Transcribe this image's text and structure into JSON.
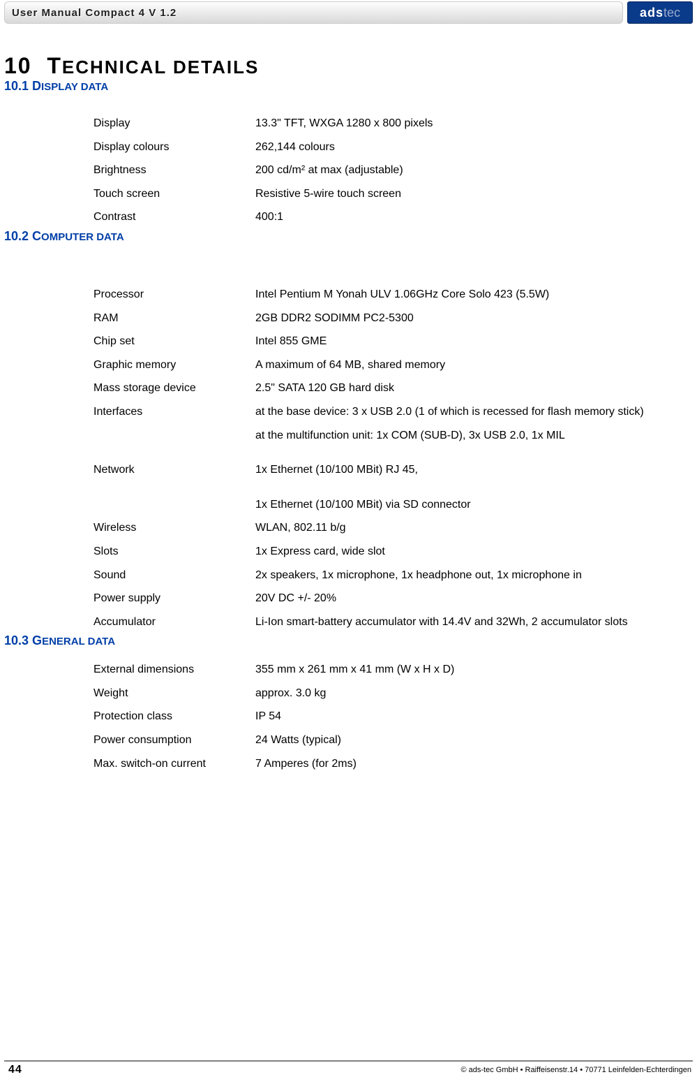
{
  "header": {
    "title": "User Manual Compact 4 V 1.2",
    "logo_main": "ads",
    "logo_sub": "tec"
  },
  "chapter": {
    "number": "10",
    "title_first": "T",
    "title_rest": "ECHNICAL DETAILS"
  },
  "sections": {
    "display": {
      "heading_num": "10.1 ",
      "heading_first": "D",
      "heading_rest": "ISPLAY DATA",
      "rows": [
        {
          "label": "Display",
          "value": "13.3\" TFT, WXGA 1280 x 800 pixels"
        },
        {
          "label": "Display colours",
          "value": "262,144 colours"
        },
        {
          "label": "Brightness",
          "value": "200 cd/m² at max (adjustable)"
        },
        {
          "label": "Touch screen",
          "value": "Resistive 5-wire touch screen"
        },
        {
          "label": "Contrast",
          "value": "400:1"
        }
      ]
    },
    "computer": {
      "heading_num": "10.2 ",
      "heading_first": "C",
      "heading_rest": "OMPUTER DATA",
      "rows": [
        {
          "label": "Processor",
          "value": "Intel Pentium M Yonah ULV 1.06GHz Core Solo 423 (5.5W)"
        },
        {
          "label": "RAM",
          "value": "2GB DDR2 SODIMM PC2-5300"
        },
        {
          "label": "Chip set",
          "value": "Intel 855 GME"
        },
        {
          "label": "Graphic memory",
          "value": "A maximum of 64 MB, shared memory"
        },
        {
          "label": "Mass storage device",
          "value": "2.5\" SATA 120 GB hard disk"
        },
        {
          "label": "Interfaces",
          "value": "at the base device: 3 x USB 2.0 (1 of which is recessed for flash memory stick)"
        },
        {
          "label": "",
          "value": "at the multifunction unit: 1x COM (SUB-D), 3x USB 2.0, 1x MIL"
        },
        {
          "label": "Network",
          "value": "1x Ethernet (10/100 MBit) RJ 45,"
        },
        {
          "label": "",
          "value": "1x Ethernet (10/100 MBit) via SD connector"
        },
        {
          "label": "Wireless",
          "value": "WLAN, 802.11 b/g"
        },
        {
          "label": "Slots",
          "value": "1x Express card, wide slot"
        },
        {
          "label": "Sound",
          "value": "2x speakers, 1x microphone, 1x headphone out, 1x microphone in"
        },
        {
          "label": "Power supply",
          "value": "20V DC +/- 20%"
        },
        {
          "label": "Accumulator",
          "value": "Li-Ion smart-battery accumulator with 14.4V and 32Wh, 2 accumulator slots"
        }
      ],
      "gap_after": [
        6,
        7
      ]
    },
    "general": {
      "heading_num": "10.3 ",
      "heading_first": "G",
      "heading_rest": "ENERAL DATA",
      "rows": [
        {
          "label": "External dimensions",
          "value": "355 mm x 261 mm x 41 mm (W x H x D)"
        },
        {
          "label": "Weight",
          "value": "approx. 3.0 kg"
        },
        {
          "label": "Protection class",
          "value": "IP 54"
        },
        {
          "label": "Power consumption",
          "value": "24 Watts (typical)"
        },
        {
          "label": "Max. switch-on current",
          "value": "7 Amperes (for 2ms)"
        }
      ]
    }
  },
  "footer": {
    "page_number": "44",
    "copyright": "© ads-tec GmbH • Raiffeisenstr.14 • 70771 Leinfelden-Echterdingen"
  }
}
